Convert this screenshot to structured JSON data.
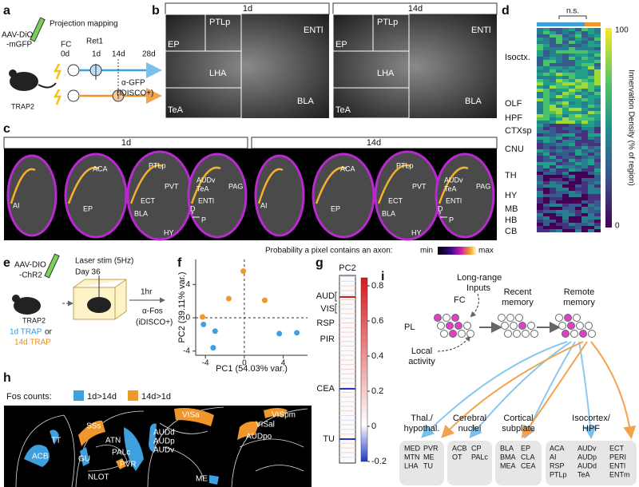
{
  "panel_labels": [
    "a",
    "b",
    "c",
    "d",
    "e",
    "f",
    "g",
    "h",
    "i"
  ],
  "a": {
    "title": "Projection mapping",
    "virus": [
      "AAV-DiO",
      "-mGFP"
    ],
    "mouse": "TRAP2",
    "timeline": [
      "FC",
      "0d",
      "Ret1",
      "1d",
      "14d",
      "28d"
    ],
    "readout": [
      "α-GFP",
      "(iDISCO+)"
    ]
  },
  "b": {
    "columns": [
      "1d",
      "14d"
    ],
    "regions": [
      "EP",
      "PTLp",
      "LHA",
      "TeA",
      "ENTl",
      "BLA"
    ]
  },
  "c": {
    "columns": [
      "1d",
      "14d"
    ],
    "regions": [
      "AI",
      "ACA",
      "EP",
      "PTLp",
      "PVT",
      "ECT",
      "BLA",
      "HY",
      "AUDv",
      "TeA",
      "ENTl",
      "PAG"
    ],
    "axes": [
      "D",
      "P"
    ],
    "colorbar": {
      "label": "Probability a pixel contains an axon:",
      "min": "min",
      "max": "max"
    }
  },
  "d": {
    "annotation": "n.s.",
    "rows": [
      "Isoctx.",
      "OLF",
      "HPF",
      "CTXsp",
      "CNU",
      "TH",
      "HY",
      "MB",
      "HB",
      "CB"
    ],
    "colorbar": {
      "ticks": [
        100,
        0
      ],
      "label": "Innervation Density (% of region)"
    }
  },
  "e": {
    "virus": [
      "AAV-DIO",
      "-ChR2"
    ],
    "mouse": "TRAP2",
    "stim": "Laser stim (5Hz)",
    "day": "Day 36",
    "delay": "1hr",
    "readout": [
      "α-Fos",
      "(iDISCO+)"
    ],
    "groups": [
      "1d TRAP",
      "or",
      "14d TRAP"
    ]
  },
  "f": {
    "type": "scatter",
    "xlabel": "PC1 (54.03% var.)",
    "ylabel": "PC2 (39.11% var.)",
    "xlim": [
      -5,
      6.5
    ],
    "ylim": [
      -4.5,
      7
    ],
    "xticks": [
      -4,
      0,
      4
    ],
    "yticks": [
      -4,
      0,
      4
    ],
    "series": [
      {
        "color": "#f0962b",
        "x": [
          -0.1,
          -1.6,
          2.1,
          -4.3
        ],
        "y": [
          5.6,
          2.3,
          2.1,
          0.1
        ]
      },
      {
        "color": "#3fa0e0",
        "x": [
          -4.2,
          -3.0,
          3.6,
          5.4,
          -3.2
        ],
        "y": [
          -0.8,
          -1.6,
          -1.9,
          -1.8,
          -3.6
        ]
      }
    ]
  },
  "g": {
    "title": "PC2",
    "rows": [
      "AUD",
      "VIS",
      "RSP",
      "PIR",
      "CEA",
      "TU"
    ],
    "colorbar": {
      "ticks": [
        0.8,
        0.6,
        0.4,
        0.2,
        0,
        -0.2
      ]
    }
  },
  "h": {
    "legend_title": "Fos counts:",
    "legend": [
      "1d>14d",
      "14d>1d"
    ],
    "regions": [
      "ACB",
      "TT",
      "GU",
      "SSs",
      "ATN",
      "PALc",
      "PVR",
      "NLOT",
      "ME",
      "VISa",
      "AUDd",
      "AUDp",
      "AUDv",
      "VISpm",
      "VISal",
      "AUDpo"
    ]
  },
  "i": {
    "inputs": [
      "Long-range",
      "Inputs"
    ],
    "fc": "FC",
    "recent": [
      "Recent",
      "memory"
    ],
    "remote": [
      "Remote",
      "memory"
    ],
    "pl": "PL",
    "local": [
      "Local",
      "activity"
    ],
    "targets": [
      {
        "label": [
          "Thal./",
          "hypothal."
        ],
        "regions": [
          [
            "MED",
            "PVR"
          ],
          [
            "MTN",
            "ME"
          ],
          [
            "LHA",
            "TU"
          ]
        ]
      },
      {
        "label": [
          "Cerebral",
          "nuclei"
        ],
        "regions": [
          [
            "ACB",
            "CP"
          ],
          [
            "OT",
            "PALc"
          ]
        ]
      },
      {
        "label": [
          "Cortical",
          "subplate"
        ],
        "regions": [
          [
            "BLA",
            "EP"
          ],
          [
            "BMA",
            "CLA"
          ],
          [
            "MEA",
            "CEA"
          ]
        ]
      },
      {
        "label": [
          "Isocortex/",
          "HPF"
        ],
        "regions": [
          [
            "ACA",
            "AUDv",
            "ECT"
          ],
          [
            "AI",
            "AUDp",
            "PERI"
          ],
          [
            "RSP",
            "AUDd",
            "ENTl"
          ],
          [
            "PTLp",
            "TeA",
            "ENTm"
          ]
        ]
      }
    ]
  }
}
